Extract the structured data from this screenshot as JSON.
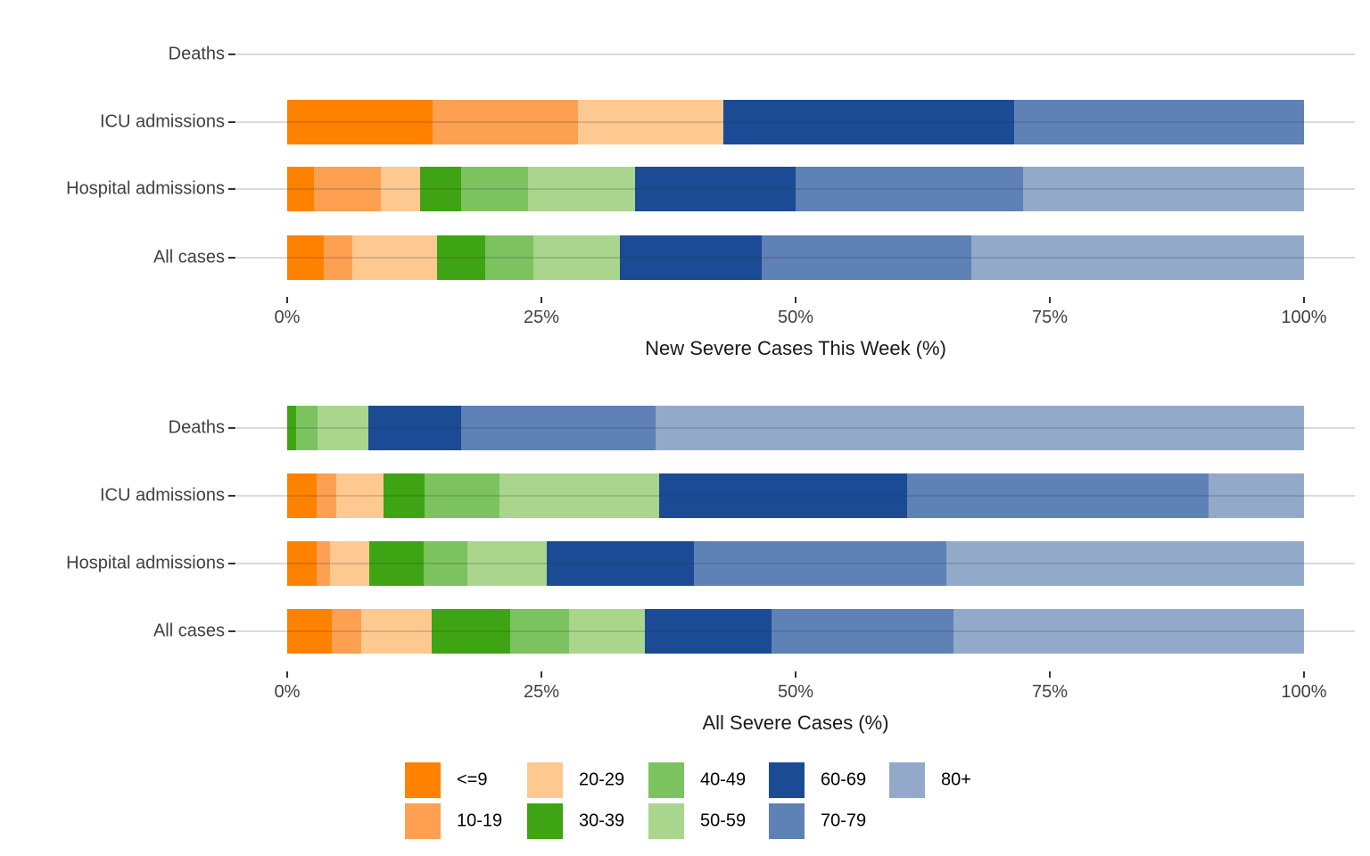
{
  "figure": {
    "background": "#ffffff",
    "gridline_color": "rgba(51,51,51,0.18)",
    "tick_color": "#333333",
    "tick_label_color": "#404040",
    "axis_title_color": "#1a1a1a",
    "legend_position": "bottom"
  },
  "legend": {
    "items": [
      {
        "label": "<=9",
        "color": "#FF8100"
      },
      {
        "label": "10-19",
        "color": "#FDA051"
      },
      {
        "label": "20-29",
        "color": "#FDC991"
      },
      {
        "label": "30-39",
        "color": "#3EA413"
      },
      {
        "label": "40-49",
        "color": "#7CC35F"
      },
      {
        "label": "50-59",
        "color": "#A9D68C"
      },
      {
        "label": "60-69",
        "color": "#1A4B94"
      },
      {
        "label": "70-79",
        "color": "#5E81B6"
      },
      {
        "label": "80+",
        "color": "#93A9CA"
      }
    ]
  },
  "chart_data": [
    {
      "type": "bar",
      "orientation": "horizontal",
      "stacked": true,
      "stack_unit": "percent",
      "xlabel": "New Severe Cases This Week (%)",
      "ylabel": "",
      "xlim": [
        0,
        100
      ],
      "x_ticks": [
        {
          "value": 0,
          "label": "0%"
        },
        {
          "value": 25,
          "label": "25%"
        },
        {
          "value": 50,
          "label": "50%"
        },
        {
          "value": 75,
          "label": "75%"
        },
        {
          "value": 100,
          "label": "100%"
        }
      ],
      "grid": "horizontal-only",
      "categories": [
        "Deaths",
        "ICU admissions",
        "Hospital admissions",
        "All cases"
      ],
      "series": [
        {
          "name": "<=9",
          "color": "#FF8100",
          "values": [
            0,
            14.3,
            2.6,
            3.6
          ]
        },
        {
          "name": "10-19",
          "color": "#FDA051",
          "values": [
            0,
            14.3,
            6.6,
            2.8
          ]
        },
        {
          "name": "20-29",
          "color": "#FDC991",
          "values": [
            0,
            14.3,
            3.9,
            8.3
          ]
        },
        {
          "name": "30-39",
          "color": "#3EA413",
          "values": [
            0,
            0,
            4.0,
            4.8
          ]
        },
        {
          "name": "40-49",
          "color": "#7CC35F",
          "values": [
            0,
            0,
            6.6,
            4.7
          ]
        },
        {
          "name": "50-59",
          "color": "#A9D68C",
          "values": [
            0,
            0,
            10.5,
            8.5
          ]
        },
        {
          "name": "60-69",
          "color": "#1A4B94",
          "values": [
            0,
            28.6,
            15.8,
            14.0
          ]
        },
        {
          "name": "70-79",
          "color": "#5E81B6",
          "values": [
            0,
            28.5,
            22.4,
            20.6
          ]
        },
        {
          "name": "80+",
          "color": "#93A9CA",
          "values": [
            0,
            0,
            27.6,
            32.7
          ]
        }
      ]
    },
    {
      "type": "bar",
      "orientation": "horizontal",
      "stacked": true,
      "stack_unit": "percent",
      "xlabel": "All Severe Cases (%)",
      "ylabel": "",
      "xlim": [
        0,
        100
      ],
      "x_ticks": [
        {
          "value": 0,
          "label": "0%"
        },
        {
          "value": 25,
          "label": "25%"
        },
        {
          "value": 50,
          "label": "50%"
        },
        {
          "value": 75,
          "label": "75%"
        },
        {
          "value": 100,
          "label": "100%"
        }
      ],
      "grid": "horizontal-only",
      "categories": [
        "Deaths",
        "ICU admissions",
        "Hospital admissions",
        "All cases"
      ],
      "series": [
        {
          "name": "<=9",
          "color": "#FF8100",
          "values": [
            0,
            2.9,
            2.9,
            4.4
          ]
        },
        {
          "name": "10-19",
          "color": "#FDA051",
          "values": [
            0,
            1.9,
            1.3,
            2.9
          ]
        },
        {
          "name": "20-29",
          "color": "#FDC991",
          "values": [
            0,
            4.7,
            3.9,
            6.9
          ]
        },
        {
          "name": "30-39",
          "color": "#3EA413",
          "values": [
            0.9,
            4.0,
            5.3,
            7.7
          ]
        },
        {
          "name": "40-49",
          "color": "#7CC35F",
          "values": [
            2.1,
            7.4,
            4.3,
            5.8
          ]
        },
        {
          "name": "50-59",
          "color": "#A9D68C",
          "values": [
            5.0,
            15.7,
            7.8,
            7.5
          ]
        },
        {
          "name": "60-69",
          "color": "#1A4B94",
          "values": [
            9.1,
            24.4,
            14.5,
            12.4
          ]
        },
        {
          "name": "70-79",
          "color": "#5E81B6",
          "values": [
            19.1,
            29.6,
            24.8,
            17.9
          ]
        },
        {
          "name": "80+",
          "color": "#93A9CA",
          "values": [
            63.8,
            9.4,
            35.2,
            34.5
          ]
        }
      ]
    }
  ]
}
